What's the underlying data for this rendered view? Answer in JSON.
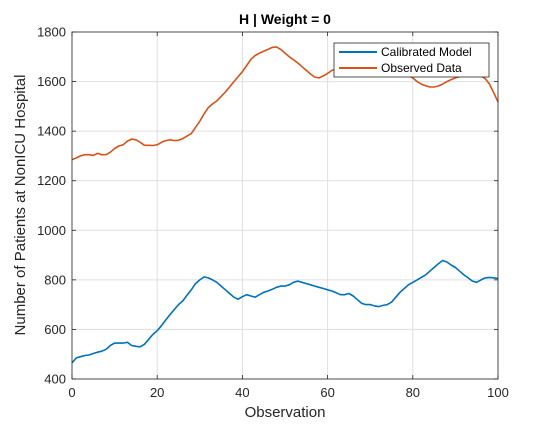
{
  "chart_data": {
    "type": "line",
    "title": "H | Weight = 0",
    "xlabel": "Observation",
    "ylabel": "Number of Patients at NonICU Hospital",
    "xlim": [
      0,
      100
    ],
    "ylim": [
      400,
      1800
    ],
    "x_ticks": [
      0,
      20,
      40,
      60,
      80,
      100
    ],
    "y_ticks": [
      400,
      600,
      800,
      1000,
      1200,
      1400,
      1600,
      1800
    ],
    "grid": true,
    "legend_position": "top-right",
    "series": [
      {
        "name": "Calibrated Model",
        "color": "#0072BD",
        "x": [
          0,
          1,
          2,
          3,
          4,
          5,
          6,
          7,
          8,
          9,
          10,
          11,
          12,
          13,
          14,
          15,
          16,
          17,
          18,
          19,
          20,
          21,
          22,
          23,
          24,
          25,
          26,
          27,
          28,
          29,
          30,
          31,
          32,
          33,
          34,
          35,
          36,
          37,
          38,
          39,
          40,
          41,
          42,
          43,
          44,
          45,
          46,
          47,
          48,
          49,
          50,
          51,
          52,
          53,
          54,
          55,
          56,
          57,
          58,
          59,
          60,
          61,
          62,
          63,
          64,
          65,
          66,
          67,
          68,
          69,
          70,
          71,
          72,
          73,
          74,
          75,
          76,
          77,
          78,
          79,
          80,
          81,
          82,
          83,
          84,
          85,
          86,
          87,
          88,
          89,
          90,
          91,
          92,
          93,
          94,
          95,
          96,
          97,
          98,
          99,
          100
        ],
        "y": [
          465,
          485,
          490,
          495,
          497,
          503,
          508,
          512,
          520,
          535,
          545,
          545,
          545,
          548,
          535,
          532,
          530,
          540,
          560,
          580,
          595,
          615,
          638,
          660,
          680,
          700,
          715,
          738,
          760,
          785,
          800,
          812,
          808,
          800,
          790,
          775,
          760,
          745,
          730,
          722,
          732,
          740,
          735,
          730,
          740,
          750,
          755,
          762,
          770,
          775,
          775,
          780,
          790,
          795,
          790,
          785,
          780,
          775,
          770,
          765,
          760,
          755,
          748,
          740,
          740,
          745,
          735,
          720,
          705,
          700,
          700,
          695,
          692,
          697,
          700,
          710,
          730,
          750,
          765,
          780,
          790,
          800,
          810,
          820,
          835,
          850,
          865,
          878,
          872,
          860,
          850,
          835,
          820,
          808,
          795,
          790,
          800,
          808,
          810,
          808,
          806
        ]
      },
      {
        "name": "Observed Data",
        "color": "#D95319",
        "x": [
          0,
          1,
          2,
          3,
          4,
          5,
          6,
          7,
          8,
          9,
          10,
          11,
          12,
          13,
          14,
          15,
          16,
          17,
          18,
          19,
          20,
          21,
          22,
          23,
          24,
          25,
          26,
          27,
          28,
          29,
          30,
          31,
          32,
          33,
          34,
          35,
          36,
          37,
          38,
          39,
          40,
          41,
          42,
          43,
          44,
          45,
          46,
          47,
          48,
          49,
          50,
          51,
          52,
          53,
          54,
          55,
          56,
          57,
          58,
          59,
          60,
          61,
          62,
          63,
          64,
          65,
          66,
          67,
          68,
          69,
          70,
          71,
          72,
          73,
          74,
          75,
          76,
          77,
          78,
          79,
          80,
          81,
          82,
          83,
          84,
          85,
          86,
          87,
          88,
          89,
          90,
          91,
          92,
          93,
          94,
          95,
          96,
          97,
          98,
          99,
          100
        ],
        "y": [
          1285,
          1292,
          1300,
          1305,
          1305,
          1302,
          1310,
          1305,
          1305,
          1315,
          1330,
          1340,
          1345,
          1360,
          1368,
          1365,
          1355,
          1343,
          1343,
          1342,
          1345,
          1355,
          1362,
          1365,
          1362,
          1363,
          1370,
          1380,
          1390,
          1415,
          1440,
          1470,
          1495,
          1510,
          1522,
          1540,
          1558,
          1578,
          1600,
          1620,
          1640,
          1665,
          1690,
          1705,
          1715,
          1722,
          1730,
          1738,
          1740,
          1730,
          1715,
          1700,
          1688,
          1675,
          1660,
          1645,
          1630,
          1618,
          1615,
          1623,
          1633,
          1645,
          1650,
          1655,
          1658,
          1662,
          1662,
          1660,
          1657,
          1654,
          1650,
          1647,
          1645,
          1642,
          1640,
          1638,
          1636,
          1634,
          1630,
          1625,
          1615,
          1600,
          1590,
          1583,
          1578,
          1578,
          1582,
          1590,
          1600,
          1608,
          1615,
          1620,
          1622,
          1624,
          1625,
          1623,
          1622,
          1612,
          1590,
          1555,
          1518
        ]
      }
    ]
  }
}
